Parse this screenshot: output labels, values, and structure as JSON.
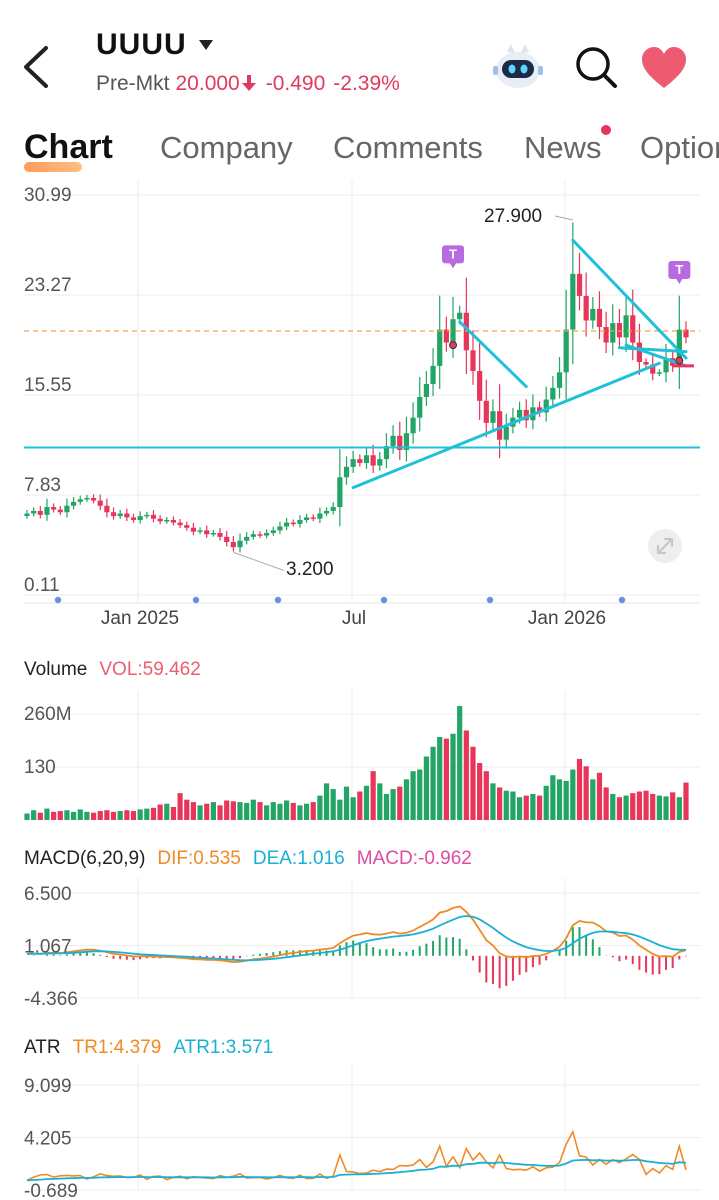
{
  "header": {
    "ticker": "UUUU",
    "premarket_label": "Pre-Mkt",
    "price": "20.000",
    "change": "-0.490",
    "change_pct": "-2.39%",
    "price_color": "#e03a5c"
  },
  "tabs": [
    {
      "label": "Chart",
      "active": true
    },
    {
      "label": "Company",
      "active": false
    },
    {
      "label": "Comments",
      "active": false
    },
    {
      "label": "News",
      "active": false,
      "badge": true
    },
    {
      "label": "Options",
      "active": false
    }
  ],
  "icons": {
    "back": "back-arrow-icon",
    "dropdown": "caret-down-icon",
    "assistant": "robot-assistant-icon",
    "search": "search-icon",
    "watchlist": "heart-icon",
    "fullscreen": "expand-icon",
    "signal_marker": "T"
  },
  "colors": {
    "up": "#22a565",
    "down": "#e8355a",
    "trendline": "#1fc0d8",
    "dif": "#f08a24",
    "dea": "#1ab0d6",
    "macd": "#e04aa0",
    "atr_tr": "#f08a24",
    "atr_line": "#1ab0d6"
  },
  "chart_data": [
    {
      "type": "candlestick",
      "y_ticks": [
        "30.99",
        "23.27",
        "15.55",
        "7.83",
        "0.11"
      ],
      "ylim": [
        0.11,
        30.99
      ],
      "x_ticks": [
        "Jan 2025",
        "Jul",
        "Jan 2026"
      ],
      "annotations": {
        "high": "27.900",
        "low": "3.200"
      },
      "reference_lines": {
        "dashed_price": 20.49,
        "horizontal_support": 11.5
      },
      "signal_marker_label": "T",
      "closes": [
        6.4,
        6.6,
        6.3,
        6.9,
        6.7,
        6.5,
        7.0,
        7.3,
        7.5,
        7.6,
        7.4,
        7.0,
        6.5,
        6.2,
        6.4,
        6.1,
        5.9,
        6.2,
        6.3,
        6.0,
        5.8,
        5.9,
        5.7,
        5.5,
        5.3,
        5.0,
        5.1,
        4.8,
        4.9,
        4.6,
        4.2,
        3.8,
        4.3,
        4.6,
        4.8,
        4.7,
        4.9,
        5.1,
        5.4,
        5.7,
        5.6,
        5.9,
        6.1,
        6.0,
        6.4,
        6.6,
        6.9,
        9.2,
        10.0,
        10.6,
        10.3,
        10.9,
        10.1,
        10.6,
        11.6,
        12.4,
        11.3,
        12.6,
        13.8,
        15.4,
        16.4,
        17.8,
        20.6,
        19.6,
        21.4,
        21.9,
        19.0,
        17.4,
        15.1,
        13.4,
        14.3,
        12.1,
        13.1,
        13.8,
        14.4,
        13.6,
        14.6,
        14.2,
        15.2,
        16.1,
        17.3,
        20.6,
        24.9,
        23.2,
        21.3,
        22.2,
        20.8,
        19.6,
        21.1,
        20.0,
        21.7,
        19.6,
        18.1,
        17.9,
        17.2,
        17.3,
        18.4,
        17.8,
        20.6,
        20.0
      ],
      "volumes": [
        8,
        12,
        9,
        14,
        10,
        11,
        12,
        10,
        13,
        10,
        9,
        11,
        12,
        10,
        11,
        12,
        11,
        13,
        14,
        15,
        19,
        20,
        16,
        33,
        25,
        22,
        18,
        20,
        22,
        18,
        24,
        23,
        22,
        21,
        25,
        22,
        18,
        22,
        20,
        24,
        21,
        18,
        20,
        22,
        30,
        45,
        38,
        25,
        41,
        28,
        35,
        42,
        60,
        45,
        32,
        38,
        41,
        50,
        60,
        62,
        78,
        90,
        102,
        100,
        106,
        140,
        110,
        90,
        70,
        60,
        45,
        40,
        36,
        35,
        28,
        30,
        32,
        30,
        42,
        55,
        50,
        48,
        62,
        75,
        66,
        50,
        58,
        40,
        32,
        28,
        30,
        33,
        35,
        36,
        32,
        30,
        29,
        34,
        28,
        46
      ]
    },
    {
      "type": "line",
      "title": "Volume",
      "indicator": "VOL:59.462",
      "y_ticks": [
        "260M",
        "130"
      ]
    },
    {
      "type": "line",
      "title": "MACD(6,20,9)",
      "dif_label": "DIF:0.535",
      "dea_label": "DEA:1.016",
      "macd_label": "MACD:-0.962",
      "y_ticks": [
        "6.500",
        "1.067",
        "-4.366"
      ],
      "ylim": [
        -4.366,
        6.5
      ]
    },
    {
      "type": "line",
      "title": "ATR",
      "tr_label": "TR1:4.379",
      "atr_label": "ATR1:3.571",
      "y_ticks": [
        "9.099",
        "4.205",
        "-0.689"
      ],
      "ylim": [
        -0.689,
        9.099
      ]
    }
  ]
}
